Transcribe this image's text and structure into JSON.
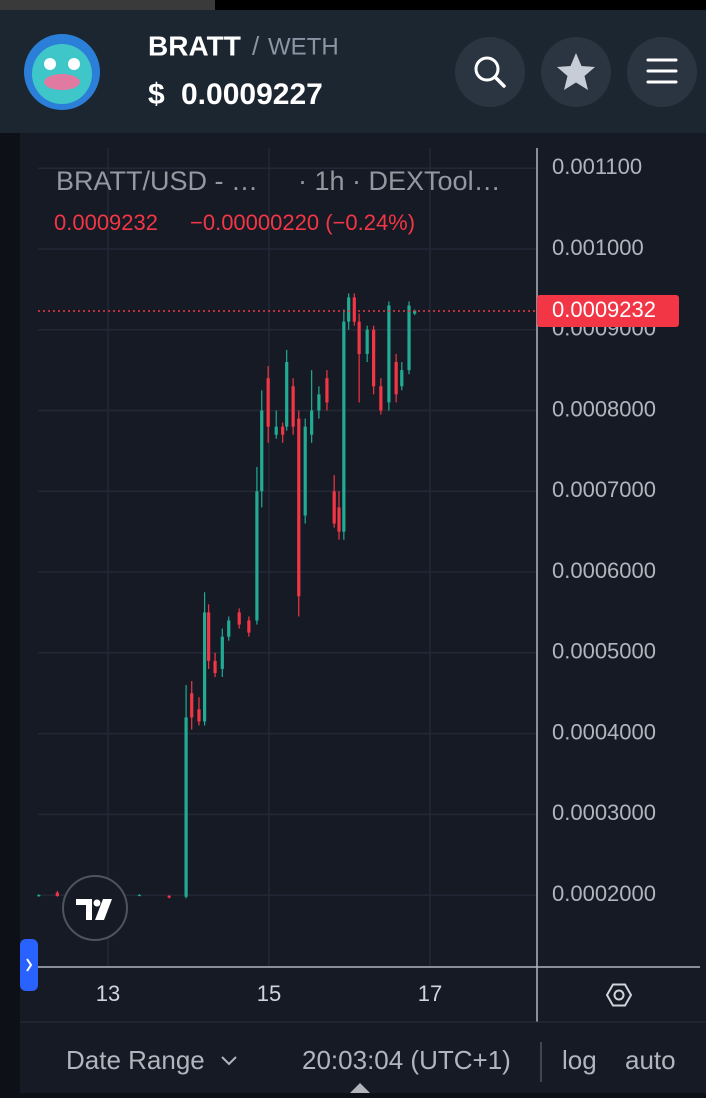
{
  "header": {
    "base": "BRATT",
    "separator": "/",
    "quote": "WETH",
    "currency": "$",
    "price": "0.0009227"
  },
  "legend": {
    "symbol": "BRATT/USD - …",
    "source": "· 1h · DEXTool…",
    "last": "0.0009232",
    "change": "−0.00000220 (−0.24%)"
  },
  "chart_data": {
    "type": "candlestick",
    "x": [
      12.14,
      12.37,
      12.64,
      13.01,
      13.39,
      13.76,
      13.97,
      14.04,
      14.13,
      14.2,
      14.25,
      14.33,
      14.42,
      14.5,
      14.63,
      14.75,
      14.85,
      14.91,
      14.99,
      15.09,
      15.17,
      15.22,
      15.3,
      15.37,
      15.45,
      15.53,
      15.62,
      15.72,
      15.81,
      15.87,
      15.93,
      15.99,
      16.06,
      16.12,
      16.22,
      16.3,
      16.39,
      16.49,
      16.58,
      16.65,
      16.74,
      16.81
    ],
    "open": [
      0.000199,
      0.000203,
      0.0002,
      0.0002,
      0.0002,
      0.000199,
      0.000198,
      0.00045,
      0.00043,
      0.000415,
      0.00055,
      0.00049,
      0.00048,
      0.00052,
      0.00055,
      0.00054,
      0.00054,
      0.0007,
      0.00084,
      0.00077,
      0.00078,
      0.00078,
      0.00083,
      0.00079,
      0.00067,
      0.00077,
      0.0008,
      0.00084,
      0.0007,
      0.00068,
      0.00065,
      0.00091,
      0.00094,
      0.00091,
      0.00087,
      0.0009,
      0.00083,
      0.00081,
      0.00086,
      0.00083,
      0.00085,
      0.00092
    ],
    "high": [
      0.000201,
      0.000205,
      0.000201,
      0.000201,
      0.000201,
      0.0002,
      0.00046,
      0.000465,
      0.000445,
      0.000575,
      0.00056,
      0.0005,
      0.00053,
      0.000545,
      0.000555,
      0.000545,
      0.00073,
      0.000825,
      0.000855,
      0.0008,
      0.000785,
      0.000875,
      0.00084,
      0.0008,
      0.00079,
      0.00085,
      0.00083,
      0.00085,
      0.00072,
      0.0007,
      0.000925,
      0.000945,
      0.000945,
      0.00092,
      0.000905,
      0.000905,
      0.00084,
      0.000935,
      0.00087,
      0.00086,
      0.000935,
      0.000925
    ],
    "low": [
      0.000198,
      0.000198,
      0.000199,
      0.000199,
      0.000199,
      0.000196,
      0.000196,
      0.000405,
      0.00041,
      0.00041,
      0.00048,
      0.00047,
      0.00047,
      0.000515,
      0.00053,
      0.00052,
      0.000535,
      0.00068,
      0.00076,
      0.000765,
      0.00076,
      0.000775,
      0.00077,
      0.000545,
      0.00066,
      0.00076,
      0.00079,
      0.0008,
      0.000655,
      0.00064,
      0.00064,
      0.0009,
      0.000905,
      0.00081,
      0.00086,
      0.00082,
      0.000795,
      0.0008,
      0.00081,
      0.000825,
      0.000845,
      0.000918
    ],
    "close": [
      0.0002,
      0.000199,
      0.0002,
      0.0002,
      0.0002,
      0.000197,
      0.00042,
      0.00042,
      0.000415,
      0.00055,
      0.00049,
      0.000475,
      0.00052,
      0.00054,
      0.000535,
      0.000525,
      0.0007,
      0.0008,
      0.00078,
      0.00078,
      0.00077,
      0.00086,
      0.00078,
      0.00057,
      0.00078,
      0.0008,
      0.00082,
      0.00081,
      0.00066,
      0.00065,
      0.00091,
      0.00094,
      0.00091,
      0.00087,
      0.0009,
      0.00083,
      0.0008,
      0.00093,
      0.00082,
      0.00085,
      0.00093,
      0.0009232
    ],
    "up_color": "#22ab94",
    "down_color": "#f23645",
    "xlim": [
      12.13,
      18.33
    ],
    "xticks": [
      13,
      15,
      17
    ],
    "ylim": [
      0.000111,
      0.001125
    ],
    "yticks": [
      {
        "value": 0.0002,
        "label": "0.0002000"
      },
      {
        "value": 0.0003,
        "label": "0.0003000"
      },
      {
        "value": 0.0004,
        "label": "0.0004000"
      },
      {
        "value": 0.0005,
        "label": "0.0005000"
      },
      {
        "value": 0.0006,
        "label": "0.0006000"
      },
      {
        "value": 0.0007,
        "label": "0.0007000"
      },
      {
        "value": 0.0008,
        "label": "0.0008000"
      },
      {
        "value": 0.0009,
        "label": "0.0009000"
      },
      {
        "value": 0.001,
        "label": "0.001000"
      },
      {
        "value": 0.0011,
        "label": "0.001100"
      }
    ],
    "last_price": 0.0009232,
    "grid": true,
    "log_scale": false
  },
  "footer": {
    "date_range": "Date Range",
    "time": "20:03:04 (UTC+1)",
    "log": "log",
    "auto": "auto"
  }
}
